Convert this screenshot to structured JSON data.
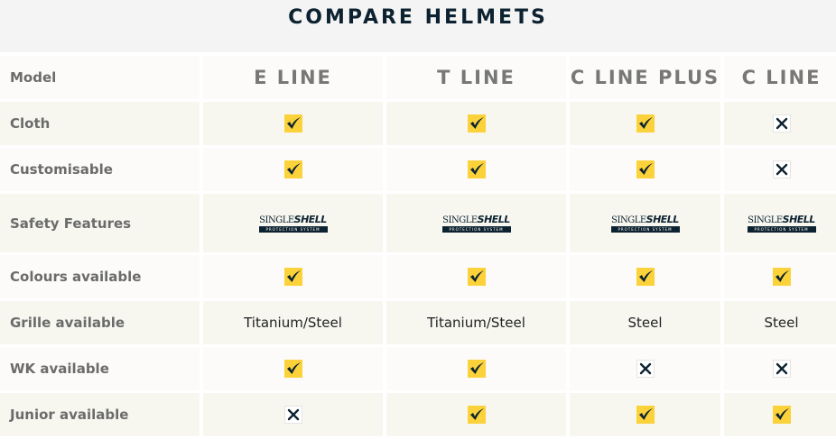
{
  "title": "COMPARE HELMETS",
  "header": {
    "label": "Model",
    "models": [
      "E LINE",
      "T LINE",
      "C LINE PLUS",
      "C LINE"
    ]
  },
  "logo": {
    "top_a": "SINGLE",
    "top_b": "SHELL",
    "bottom": "PROTECTION SYSTEM"
  },
  "colors": {
    "check_bg": "#fcd23a",
    "mark": "#0d2230"
  },
  "rows": [
    {
      "label": "Cloth",
      "values": [
        "check",
        "check",
        "check",
        "cross"
      ]
    },
    {
      "label": "Customisable",
      "values": [
        "check",
        "check",
        "check",
        "cross"
      ]
    },
    {
      "label": "Safety Features",
      "values": [
        "logo",
        "logo",
        "logo",
        "logo"
      ]
    },
    {
      "label": "Colours available",
      "values": [
        "check",
        "check",
        "check",
        "check"
      ]
    },
    {
      "label": "Grille available",
      "values": [
        "Titanium/Steel",
        "Titanium/Steel",
        "Steel",
        "Steel"
      ]
    },
    {
      "label": "WK available",
      "values": [
        "check",
        "check",
        "cross",
        "cross"
      ]
    },
    {
      "label": "Junior available",
      "values": [
        "cross",
        "check",
        "check",
        "check"
      ]
    }
  ]
}
